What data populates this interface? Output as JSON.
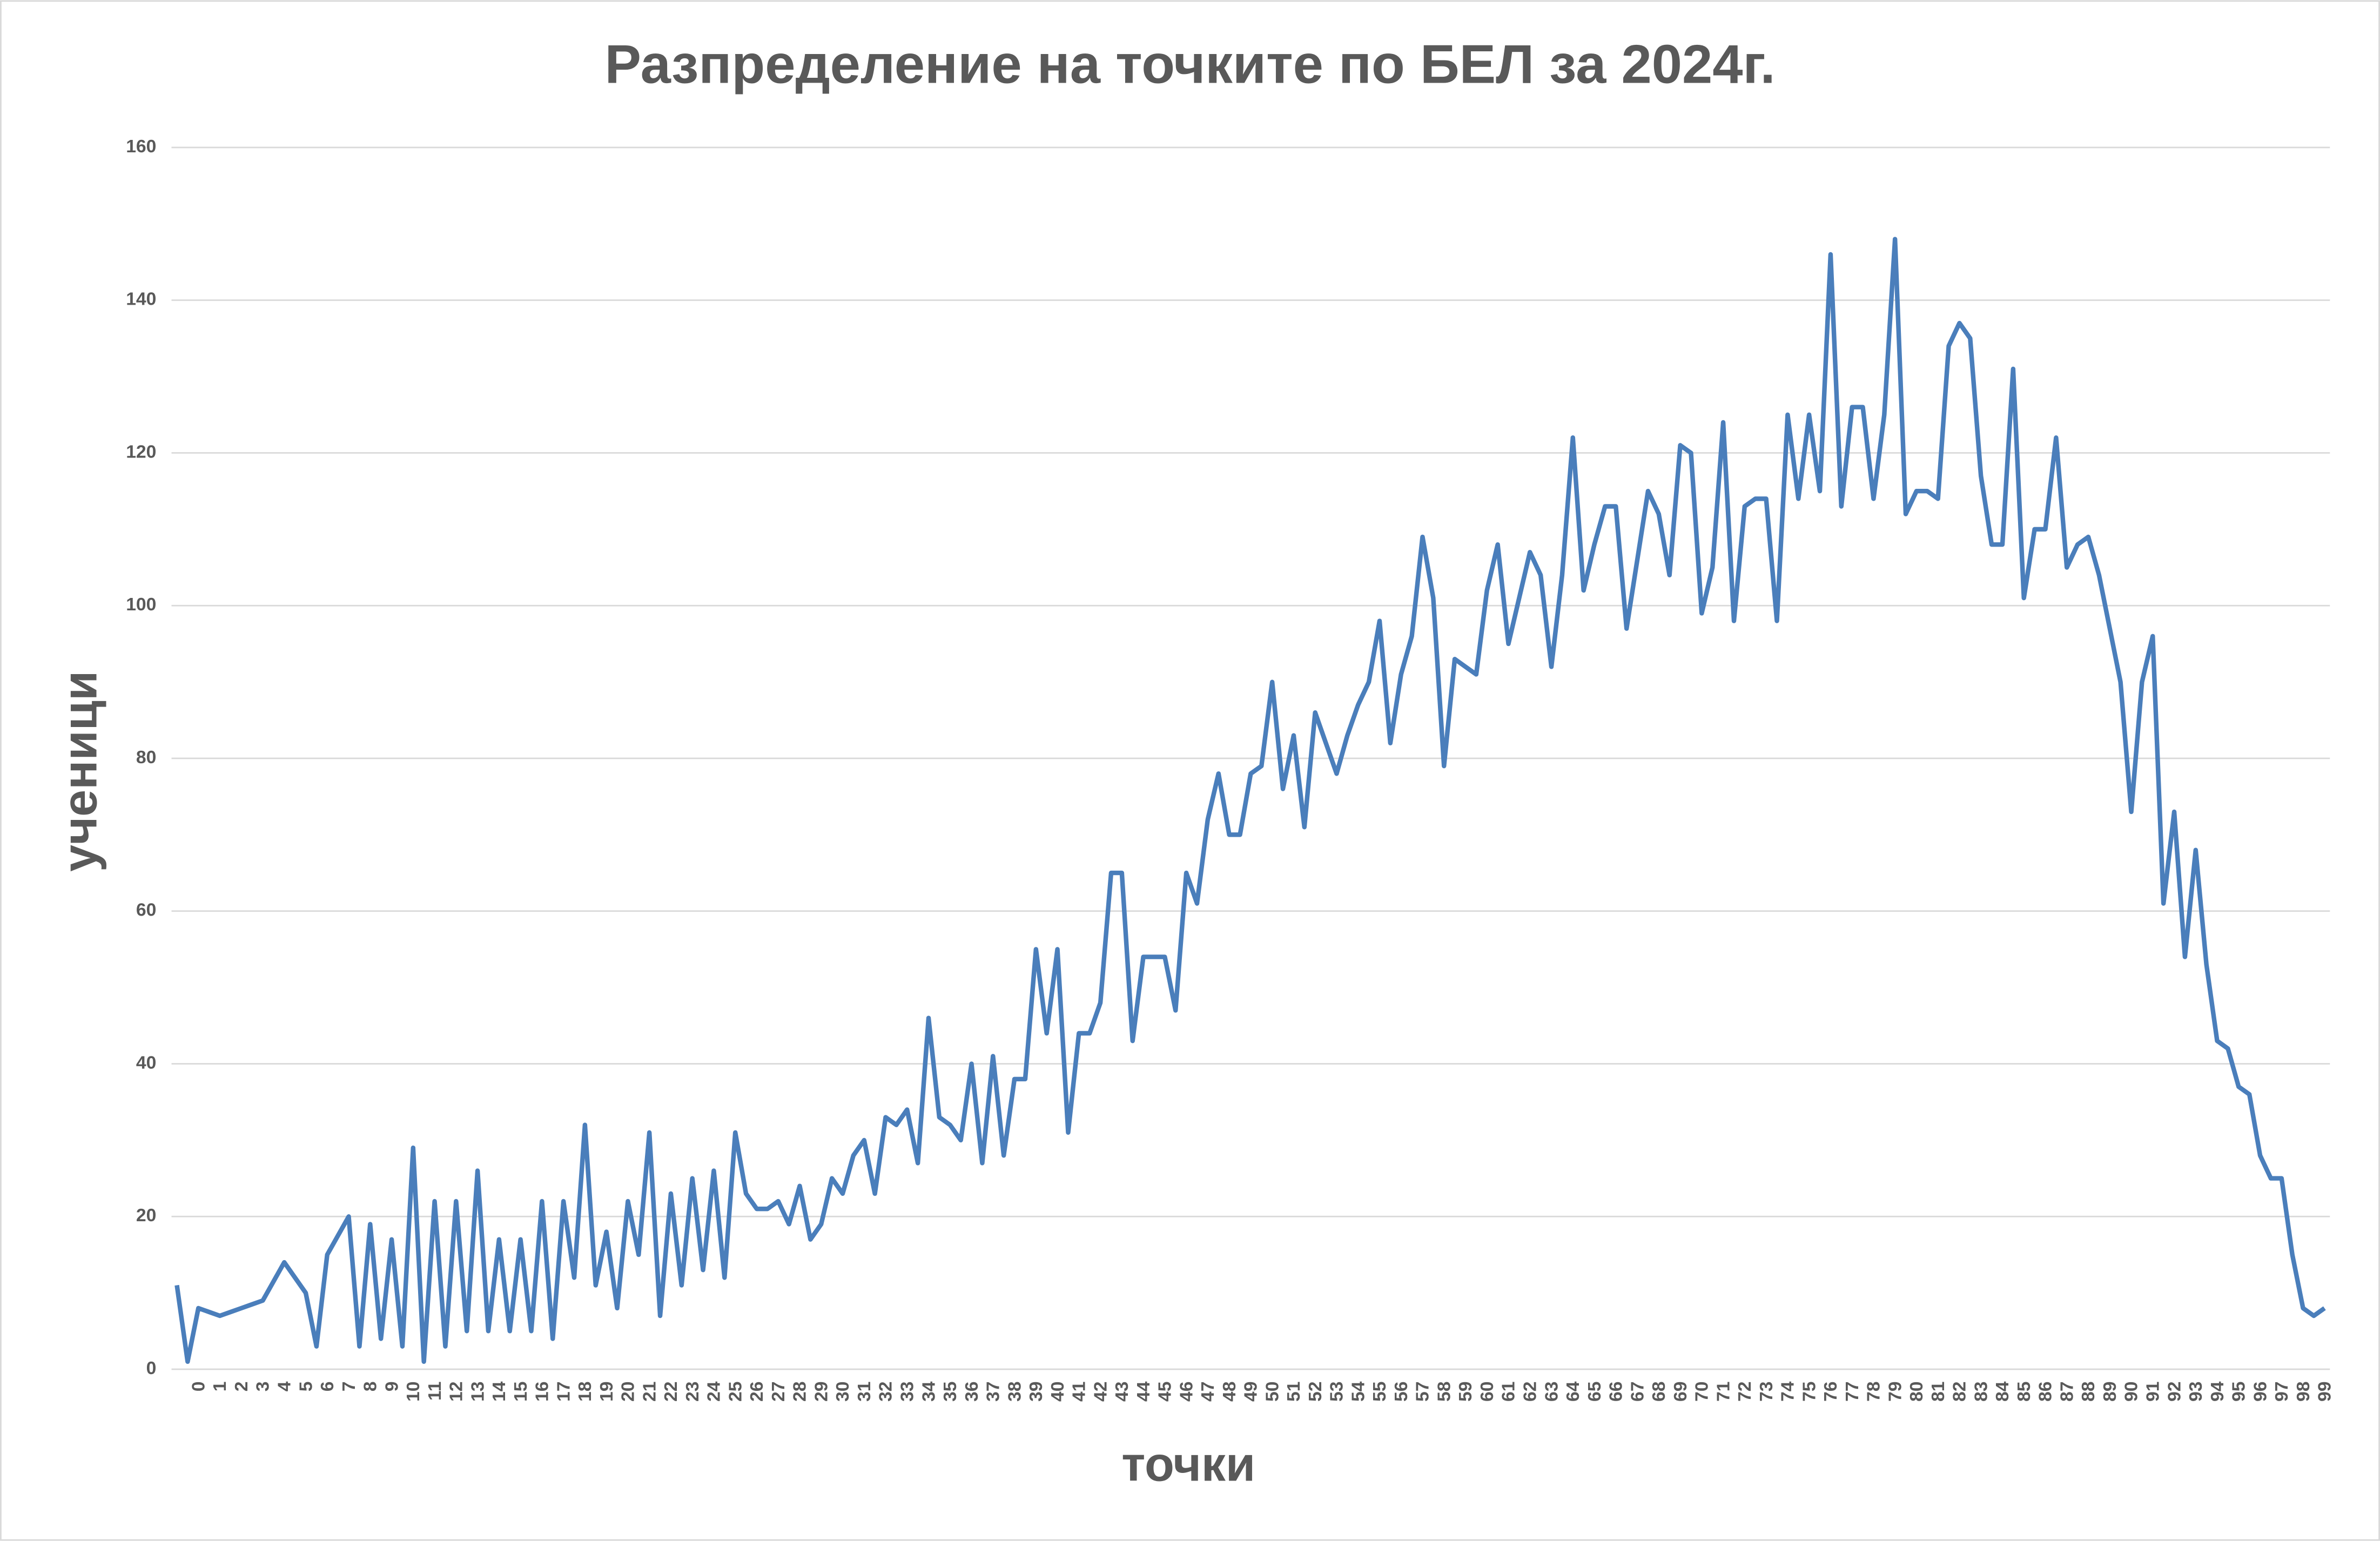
{
  "chart_data": {
    "type": "line",
    "title": "Разпределение на точките по БЕЛ за 2024г.",
    "x_label": "точки",
    "y_label": "ученици",
    "categories": [
      null,
      null,
      "0",
      null,
      "1",
      null,
      "2",
      null,
      "3",
      null,
      "4",
      null,
      "5",
      null,
      "6",
      null,
      "7",
      null,
      "8",
      null,
      "9",
      null,
      "10",
      null,
      "11",
      null,
      "12",
      null,
      "13",
      null,
      "14",
      null,
      "15",
      null,
      "16",
      null,
      "17",
      null,
      "18",
      null,
      "19",
      null,
      "20",
      null,
      "21",
      null,
      "22",
      null,
      "23",
      null,
      "24",
      null,
      "25",
      null,
      "26",
      null,
      "27",
      null,
      "28",
      null,
      "29",
      null,
      "30",
      null,
      "31",
      null,
      "32",
      null,
      "33",
      null,
      "34",
      null,
      "35",
      null,
      "36",
      null,
      "37",
      null,
      "38",
      null,
      "39",
      null,
      "40",
      null,
      "41",
      null,
      "42",
      null,
      "43",
      null,
      "44",
      null,
      "45",
      null,
      "46",
      null,
      "47",
      null,
      "48",
      null,
      "49",
      null,
      "50",
      null,
      "51",
      null,
      "52",
      null,
      "53",
      null,
      "54",
      null,
      "55",
      null,
      "56",
      null,
      "57",
      null,
      "58",
      null,
      "59",
      null,
      "60",
      null,
      "61",
      null,
      "62",
      null,
      "63",
      null,
      "64",
      null,
      "65",
      null,
      "66",
      null,
      "67",
      null,
      "68",
      null,
      "69",
      null,
      "70",
      null,
      "71",
      null,
      "72",
      null,
      "73",
      null,
      "74",
      null,
      "75",
      null,
      "76",
      null,
      "77",
      null,
      "78",
      null,
      "79",
      null,
      "80",
      null,
      "81",
      null,
      "82",
      null,
      "83",
      null,
      "84",
      null,
      "85",
      null,
      "86",
      null,
      "87",
      null,
      "88",
      null,
      "89",
      null,
      "90",
      null,
      "91",
      null,
      "92",
      null,
      "93",
      null,
      "94",
      null,
      "95",
      null,
      "96",
      null,
      "97",
      null,
      "98",
      null,
      "99"
    ],
    "series": [
      {
        "color": "#4a7ebb",
        "values": [
          11,
          1,
          8,
          7.5,
          7,
          7.5,
          8,
          8.5,
          9,
          11.5,
          14,
          12,
          10,
          3,
          15,
          17.5,
          20,
          3,
          19,
          4,
          17,
          3,
          29,
          1,
          22,
          3,
          22,
          5,
          26,
          5,
          17,
          5,
          17,
          5,
          22,
          4,
          22,
          12,
          32,
          11,
          18,
          8,
          22,
          15,
          31,
          7,
          23,
          11,
          25,
          13,
          26,
          12,
          31,
          23,
          21,
          21,
          22,
          19,
          24,
          17,
          19,
          25,
          23,
          28,
          30,
          23,
          33,
          32,
          34,
          27,
          46,
          33,
          32,
          30,
          40,
          27,
          41,
          28,
          38,
          38,
          55,
          44,
          55,
          31,
          44,
          44,
          48,
          65,
          65,
          43,
          54,
          54,
          54,
          47,
          65,
          61,
          72,
          78,
          70,
          70,
          78,
          79,
          90,
          76,
          83,
          71,
          86,
          82,
          78,
          83,
          87,
          90,
          98,
          82,
          91,
          96,
          109,
          101,
          79,
          93,
          92,
          91,
          102,
          108,
          95,
          101,
          107,
          104,
          92,
          104,
          122,
          102,
          108,
          113,
          113,
          97,
          106,
          115,
          112,
          104,
          121,
          120,
          99,
          105,
          124,
          98,
          113,
          114,
          114,
          98,
          125,
          114,
          125,
          115,
          146,
          113,
          126,
          126,
          114,
          125,
          148,
          112,
          115,
          115,
          114,
          134,
          137,
          135,
          117,
          108,
          108,
          131,
          101,
          110,
          110,
          122,
          105,
          108,
          109,
          104,
          97,
          90,
          73,
          90,
          96,
          61,
          73,
          54,
          68,
          53,
          43,
          42,
          37,
          36,
          28,
          25,
          25,
          15,
          8,
          7,
          8
        ]
      }
    ],
    "ylim": [
      0,
      160
    ],
    "yticks": [
      0,
      20,
      40,
      60,
      80,
      100,
      120,
      140,
      160
    ],
    "grid": true
  }
}
